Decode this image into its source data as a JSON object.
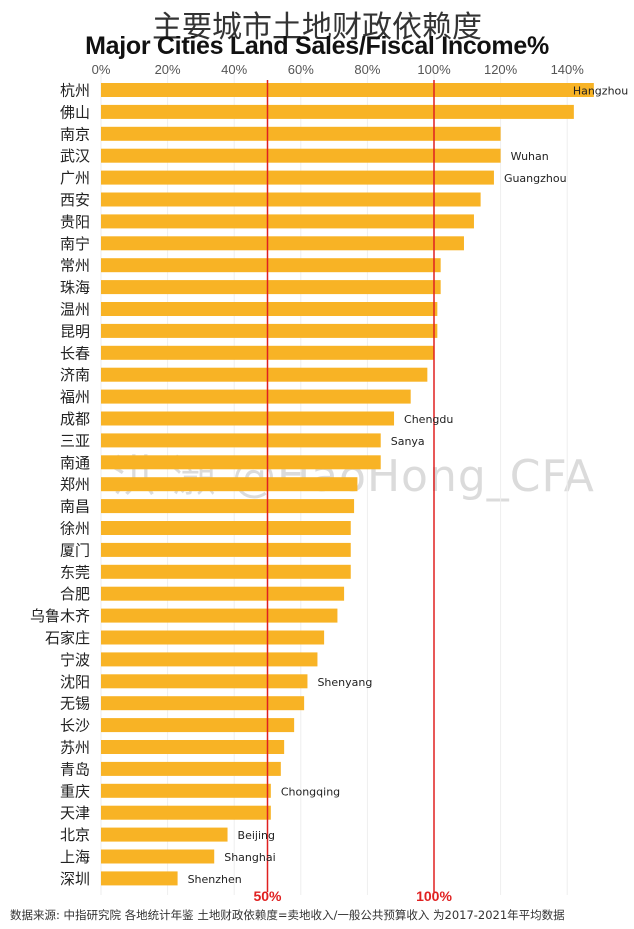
{
  "title_cn": "主要城市土地财政依赖度",
  "title_en": "Major Cities Land Sales/Fiscal Income%",
  "source_note": "数据来源: 中指研究院 各地统计年鉴  土地财政依赖度=卖地收入/一般公共预算收入 为2017-2021年平均数据",
  "watermark": "洪 灝 @HaoHong_CFA",
  "chart_data": {
    "type": "bar",
    "orientation": "horizontal",
    "title": "Major Cities Land Sales/Fiscal Income%",
    "categories": [
      "杭州",
      "佛山",
      "南京",
      "武汉",
      "广州",
      "西安",
      "贵阳",
      "南宁",
      "常州",
      "珠海",
      "温州",
      "昆明",
      "长春",
      "济南",
      "福州",
      "成都",
      "三亚",
      "南通",
      "郑州",
      "南昌",
      "徐州",
      "厦门",
      "东莞",
      "合肥",
      "乌鲁木齐",
      "石家庄",
      "宁波",
      "沈阳",
      "无锡",
      "长沙",
      "苏州",
      "青岛",
      "重庆",
      "天津",
      "北京",
      "上海",
      "深圳"
    ],
    "values": [
      148,
      142,
      120,
      120,
      118,
      114,
      112,
      109,
      102,
      102,
      101,
      101,
      100,
      98,
      93,
      88,
      84,
      84,
      77,
      76,
      75,
      75,
      75,
      73,
      71,
      67,
      65,
      62,
      61,
      58,
      55,
      54,
      51,
      51,
      38,
      34,
      23
    ],
    "annotations": [
      {
        "category": "杭州",
        "text": "Hangzhou"
      },
      {
        "category": "武汉",
        "text": "Wuhan"
      },
      {
        "category": "广州",
        "text": "Guangzhou"
      },
      {
        "category": "成都",
        "text": "Chengdu"
      },
      {
        "category": "三亚",
        "text": "Sanya"
      },
      {
        "category": "沈阳",
        "text": "Shenyang"
      },
      {
        "category": "重庆",
        "text": "Chongqing"
      },
      {
        "category": "北京",
        "text": "Beijing"
      },
      {
        "category": "上海",
        "text": "Shanghai"
      },
      {
        "category": "深圳",
        "text": "Shenzhen"
      }
    ],
    "xlim": [
      0,
      150
    ],
    "xticks": [
      0,
      20,
      40,
      60,
      80,
      100,
      120,
      140
    ],
    "tick_labels": [
      "0%",
      "20%",
      "40%",
      "60%",
      "80%",
      "100%",
      "120%",
      "140%"
    ],
    "reference_lines": [
      {
        "value": 50,
        "label": "50%"
      },
      {
        "value": 100,
        "label": "100%"
      }
    ],
    "bar_color": "#F8B325",
    "line_color": "#E02020",
    "grid": true
  }
}
